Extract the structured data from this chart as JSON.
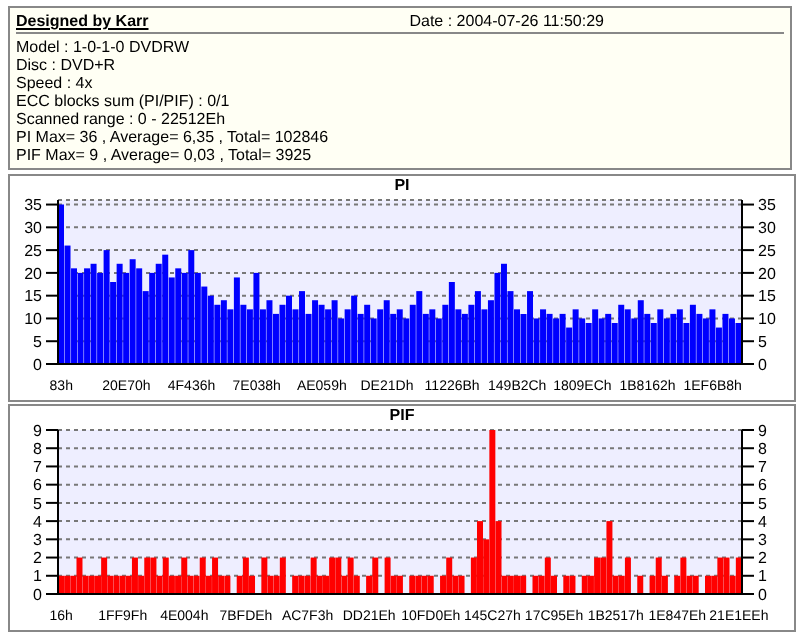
{
  "chart_data": [
    {
      "type": "other",
      "title": "Designed by Karr",
      "annotations": [
        "Date : 2004-07-26 11:50:29",
        "Model : 1-0-1-0 DVDRW",
        "Disc : DVD+R",
        "Speed : 4x",
        "ECC blocks sum (PI/PIF) : 0/1",
        "Scanned range : 0 - 22512Eh",
        "PI Max= 36 , Average= 6,35 , Total= 102846",
        "PIF Max= 9 , Average= 0,03 , Total= 3925"
      ]
    },
    {
      "type": "bar",
      "title": "PI",
      "color": "#0000ff",
      "grid": "y",
      "categories": [
        "83h",
        null,
        null,
        null,
        null,
        null,
        null,
        null,
        null,
        null,
        "20E70h",
        null,
        null,
        null,
        null,
        null,
        null,
        null,
        null,
        null,
        "4F436h",
        null,
        null,
        null,
        null,
        null,
        null,
        null,
        null,
        null,
        "7E038h",
        null,
        null,
        null,
        null,
        null,
        null,
        null,
        null,
        null,
        "AE059h",
        null,
        null,
        null,
        null,
        null,
        null,
        null,
        null,
        null,
        "DE21Dh",
        null,
        null,
        null,
        null,
        null,
        null,
        null,
        null,
        null,
        "11226Bh",
        null,
        null,
        null,
        null,
        null,
        null,
        null,
        null,
        null,
        "149B2Ch",
        null,
        null,
        null,
        null,
        null,
        null,
        null,
        null,
        null,
        "1809ECh",
        null,
        null,
        null,
        null,
        null,
        null,
        null,
        null,
        null,
        "1B8162h",
        null,
        null,
        null,
        null,
        null,
        null,
        null,
        null,
        null,
        "1EF6B8h",
        null,
        null,
        null,
        null
      ],
      "values": [
        35,
        26,
        21,
        20,
        21,
        22,
        20,
        25,
        18,
        22,
        20,
        23,
        21,
        16,
        20,
        22,
        24,
        19,
        21,
        20,
        25,
        20,
        17,
        15,
        13,
        14,
        12,
        19,
        13,
        12,
        20,
        12,
        14,
        11,
        13,
        15,
        12,
        16,
        11,
        14,
        13,
        12,
        14,
        10,
        12,
        15,
        11,
        13,
        10,
        12,
        14,
        11,
        12,
        10,
        13,
        16,
        11,
        12,
        10,
        13,
        18,
        12,
        11,
        13,
        16,
        12,
        14,
        20,
        22,
        16,
        12,
        11,
        16,
        10,
        12,
        11,
        10,
        11,
        8,
        12,
        10,
        9,
        12,
        10,
        11,
        9,
        13,
        12,
        10,
        14,
        11,
        9,
        12,
        10,
        11,
        12,
        9,
        13,
        11,
        10,
        12,
        8,
        11,
        10,
        9
      ],
      "ylim": [
        0,
        36
      ],
      "yticks": [
        0,
        5,
        10,
        15,
        20,
        25,
        30,
        35
      ],
      "y2lim": [
        0,
        36
      ],
      "y2ticks": [
        0,
        5,
        10,
        15,
        20,
        25,
        30,
        35
      ]
    },
    {
      "type": "bar",
      "title": "PIF",
      "color": "#ff0000",
      "grid": "y",
      "categories": [
        "16h",
        null,
        null,
        null,
        null,
        null,
        null,
        null,
        null,
        null,
        "1FF9Fh",
        null,
        null,
        null,
        null,
        null,
        null,
        null,
        null,
        null,
        "4E004h",
        null,
        null,
        null,
        null,
        null,
        null,
        null,
        null,
        null,
        "7BFDEh",
        null,
        null,
        null,
        null,
        null,
        null,
        null,
        null,
        null,
        "AC7F3h",
        null,
        null,
        null,
        null,
        null,
        null,
        null,
        null,
        null,
        "DD21Eh",
        null,
        null,
        null,
        null,
        null,
        null,
        null,
        null,
        null,
        "10FD0Eh",
        null,
        null,
        null,
        null,
        null,
        null,
        null,
        null,
        null,
        "145C27h",
        null,
        null,
        null,
        null,
        null,
        null,
        null,
        null,
        null,
        "17C95Eh",
        null,
        null,
        null,
        null,
        null,
        null,
        null,
        null,
        null,
        "1B2517h",
        null,
        null,
        null,
        null,
        null,
        null,
        null,
        null,
        null,
        "1E847Eh",
        null,
        null,
        null,
        null,
        null,
        null,
        null,
        null,
        null,
        "21E1EEh"
      ],
      "values": [
        1,
        1,
        1,
        2,
        1,
        1,
        1,
        2,
        1,
        1,
        1,
        1,
        2,
        1,
        2,
        2,
        1,
        2,
        1,
        1,
        2,
        1,
        1,
        2,
        1,
        2,
        1,
        1,
        0,
        1,
        2,
        1,
        0,
        2,
        1,
        1,
        2,
        0,
        1,
        1,
        1,
        2,
        1,
        1,
        2,
        2,
        1,
        2,
        1,
        0,
        1,
        2,
        0,
        2,
        1,
        1,
        0,
        1,
        1,
        1,
        1,
        0,
        1,
        2,
        1,
        1,
        0,
        2,
        4,
        3,
        9,
        4,
        1,
        1,
        1,
        1,
        0,
        1,
        1,
        2,
        1,
        0,
        1,
        1,
        0,
        1,
        1,
        2,
        2,
        4,
        1,
        1,
        2,
        0,
        1,
        0,
        1,
        2,
        1,
        0,
        1,
        2,
        1,
        1,
        0,
        1,
        1,
        2,
        2,
        1,
        2
      ],
      "ylim": [
        0,
        9
      ],
      "yticks": [
        0,
        1,
        2,
        3,
        4,
        5,
        6,
        7,
        8,
        9
      ],
      "y2lim": [
        0,
        9
      ],
      "y2ticks": [
        0,
        1,
        2,
        3,
        4,
        5,
        6,
        7,
        8,
        9
      ]
    }
  ]
}
